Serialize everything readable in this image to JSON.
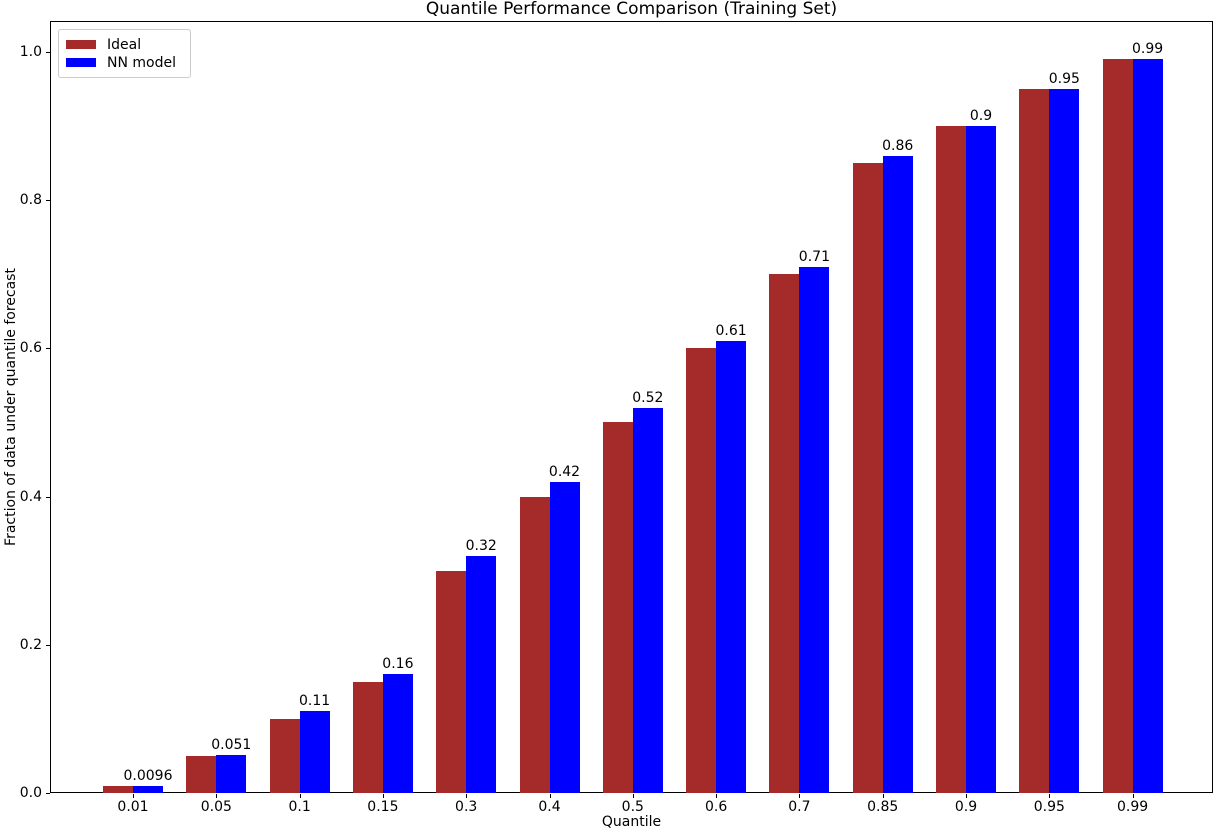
{
  "figure": {
    "title": "Quantile Performance Comparison (Training Set)",
    "xlabel": "Quantile",
    "ylabel": "Fraction of data under quantile forecast"
  },
  "legend": {
    "items": [
      {
        "label": "Ideal",
        "color": "#a52a2a"
      },
      {
        "label": "NN model",
        "color": "#0000ff"
      }
    ]
  },
  "chart_data": {
    "type": "bar",
    "title": "Quantile Performance Comparison (Training Set)",
    "xlabel": "Quantile",
    "ylabel": "Fraction of data under quantile forecast",
    "categories": [
      "0.01",
      "0.05",
      "0.1",
      "0.15",
      "0.3",
      "0.4",
      "0.5",
      "0.6",
      "0.7",
      "0.85",
      "0.9",
      "0.95",
      "0.99"
    ],
    "series": [
      {
        "name": "Ideal",
        "color": "#a52a2a",
        "values": [
          0.01,
          0.05,
          0.1,
          0.15,
          0.3,
          0.4,
          0.5,
          0.6,
          0.7,
          0.85,
          0.9,
          0.95,
          0.99
        ]
      },
      {
        "name": "NN model",
        "color": "#0000ff",
        "values": [
          0.0096,
          0.051,
          0.11,
          0.16,
          0.32,
          0.42,
          0.52,
          0.61,
          0.71,
          0.86,
          0.9,
          0.95,
          0.99
        ],
        "labels": [
          "0.0096",
          "0.051",
          "0.11",
          "0.16",
          "0.32",
          "0.42",
          "0.52",
          "0.61",
          "0.71",
          "0.86",
          "0.9",
          "0.95",
          "0.99"
        ]
      }
    ],
    "yticks": [
      "0.0",
      "0.2",
      "0.4",
      "0.6",
      "0.8",
      "1.0"
    ],
    "ylim": [
      0,
      1.042
    ],
    "grid": false,
    "legend_position": "upper left",
    "bar_value_labels_on": "NN model",
    "background_color": "#ffffff",
    "text_color": "#000000"
  }
}
